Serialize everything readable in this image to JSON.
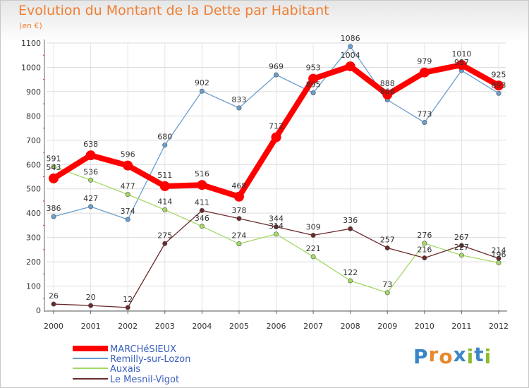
{
  "title": "Evolution du Montant de la Dette par Habitant",
  "unit_label": "(en €)",
  "logo": {
    "letters": [
      "P",
      "r",
      "o",
      "x",
      "i",
      "t",
      "i"
    ],
    "colors": [
      "#3a86c6",
      "#e7892a",
      "#e7892a",
      "#3a86c6",
      "#8cbc2e",
      "#3a86c6",
      "#8cbc2e"
    ]
  },
  "chart_data": {
    "type": "line",
    "title": "Evolution du Montant de la Dette par Habitant",
    "ylabel": "(en €)",
    "ylim": [
      0,
      1100
    ],
    "yticks": [
      0,
      100,
      200,
      300,
      400,
      500,
      600,
      700,
      800,
      900,
      1000,
      1100
    ],
    "grid": true,
    "legend": "bottom-left",
    "x": [
      "2000",
      "2001",
      "2002",
      "2003",
      "2004",
      "2005",
      "2006",
      "2007",
      "2008",
      "2009",
      "2010",
      "2011",
      "2012"
    ],
    "series": [
      {
        "name": "MARCHéSIEUX",
        "color": "#ff0000",
        "values": [
          543,
          638,
          596,
          511,
          516,
          468,
          712,
          953,
          1004,
          888,
          979,
          1010,
          925
        ]
      },
      {
        "name": "Remilly-sur-Lozon",
        "color": "#6a9ed0",
        "values": [
          386,
          427,
          374,
          680,
          902,
          833,
          969,
          895,
          1086,
          866,
          773,
          987,
          893
        ]
      },
      {
        "name": "Auxais",
        "color": "#a4d865",
        "values": [
          591,
          536,
          477,
          414,
          346,
          274,
          314,
          221,
          122,
          73,
          276,
          227,
          196
        ]
      },
      {
        "name": "Le Mesnil-Vigot",
        "color": "#6b2a2a",
        "values": [
          26,
          20,
          12,
          275,
          411,
          378,
          344,
          309,
          336,
          257,
          216,
          267,
          214
        ]
      }
    ]
  }
}
